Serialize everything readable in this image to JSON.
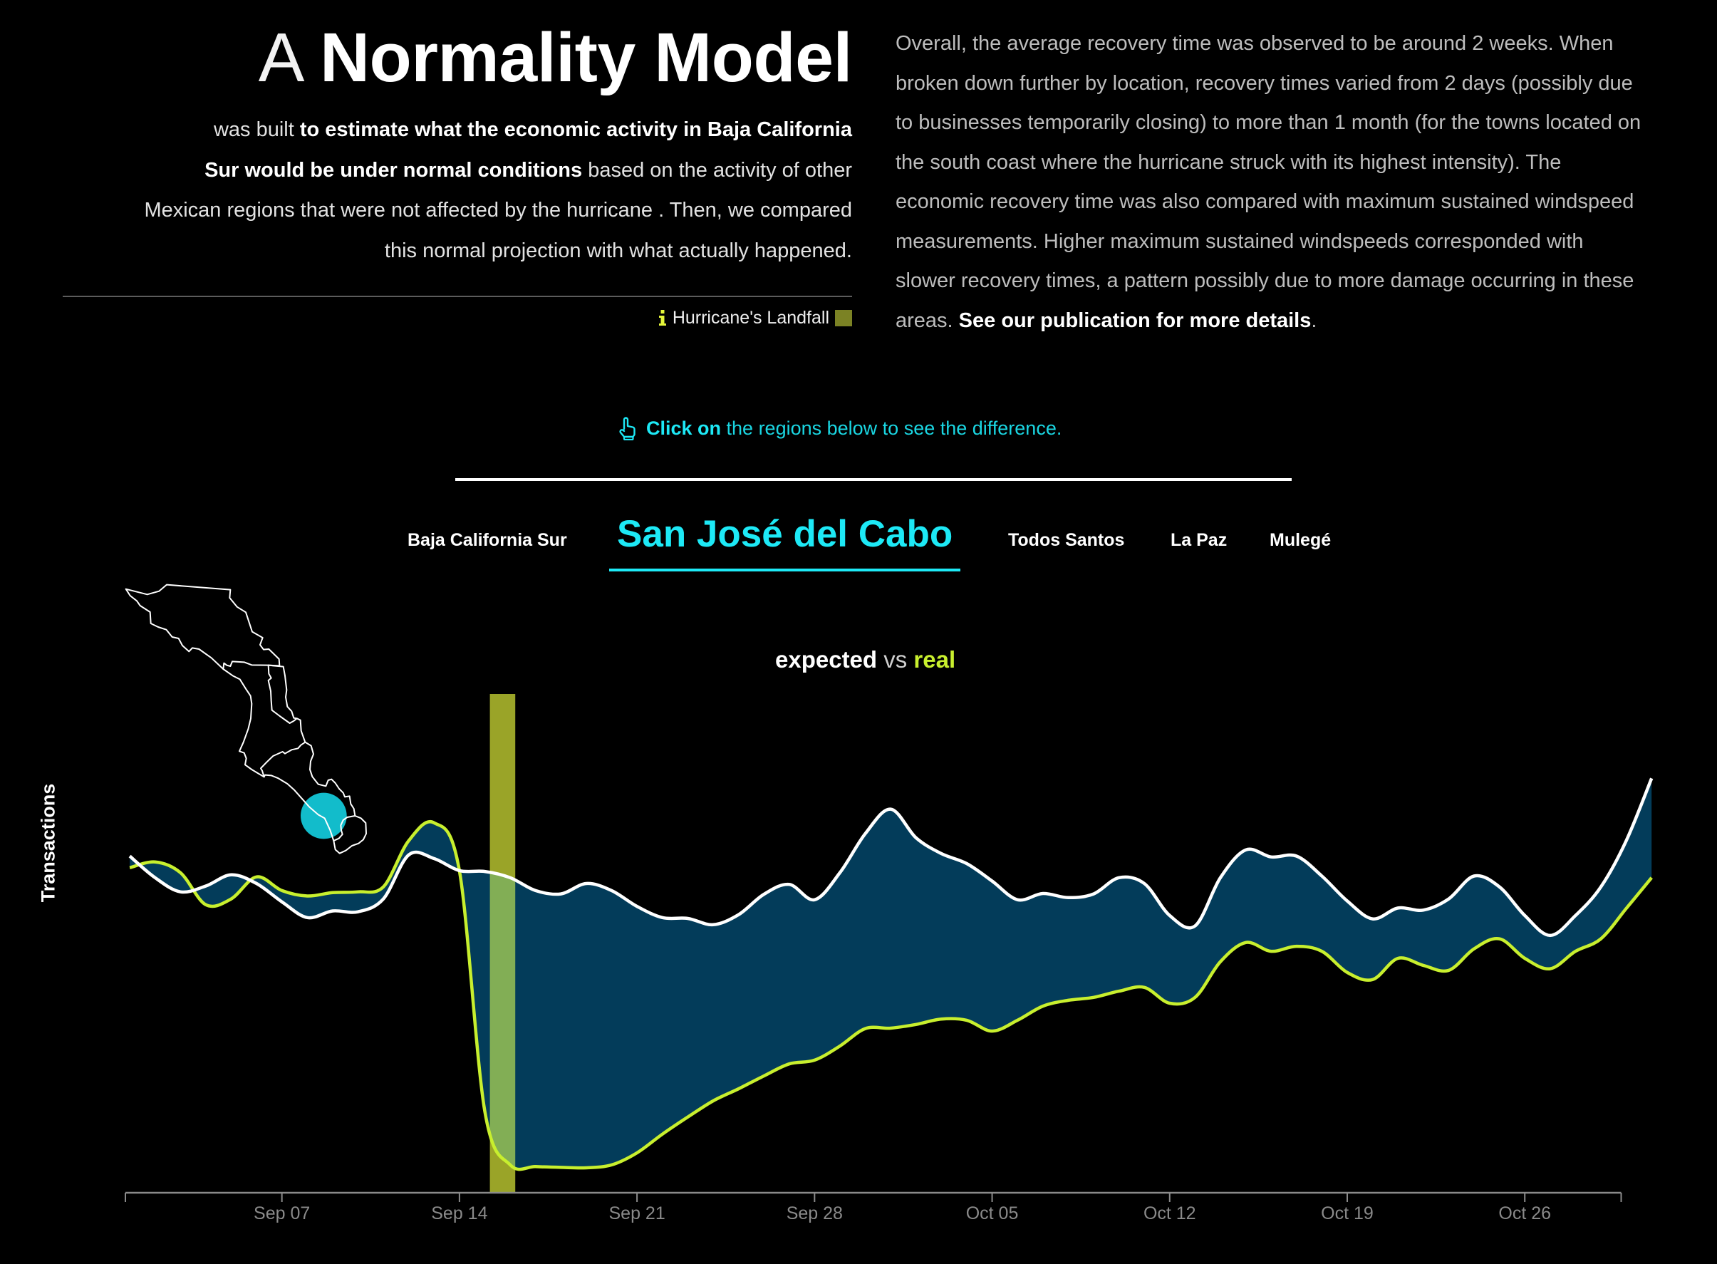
{
  "header": {
    "title_prefix": "A",
    "title_main": "Normality Model",
    "intro_lines": [
      [
        {
          "text": "was built ",
          "style": "light"
        },
        {
          "text": "to estimate what the economic activity in Baja California",
          "style": "bold"
        }
      ],
      [
        {
          "text": "Sur would be under normal conditions",
          "style": "bold"
        },
        {
          "text": " based on the activity of other",
          "style": "light"
        }
      ],
      [
        {
          "text": "Mexican regions that were not affected by the hurricane . Then, we compared",
          "style": "light"
        }
      ],
      [
        {
          "text": "this normal projection with what actually happened.",
          "style": "light"
        }
      ]
    ]
  },
  "legend": {
    "info_icon": "info-icon",
    "landfall_label": "Hurricane's Landfall",
    "landfall_color": "#7b8224"
  },
  "summary": {
    "lines": [
      "Overall, the average recovery time was observed to be around 2 weeks. When",
      "broken down further by location, recovery times varied from 2 days (possibly due",
      "to businesses temporarily closing) to more than 1 month (for the towns located on",
      "the south coast where the hurricane struck with its highest intensity). The",
      "economic recovery time was also compared with maximum sustained windspeed",
      "measurements. Higher maximum sustained windspeeds corresponded with",
      "slower recovery times, a pattern possibly due to more damage occurring in these"
    ],
    "last_line_prefix": "areas. ",
    "publication_link": "See our publication for more details",
    "last_line_suffix": "."
  },
  "instruction": {
    "icon": "pointing-hand-icon",
    "bold": "Click on",
    "rest": " the regions below to see the difference.",
    "color": "#1de9f6"
  },
  "tabs": {
    "items": [
      {
        "label": "Baja California Sur",
        "active": false
      },
      {
        "label": "San José del Cabo",
        "active": true
      },
      {
        "label": "Todos Santos",
        "active": false
      },
      {
        "label": "La Paz",
        "active": false
      },
      {
        "label": "Mulegé",
        "active": false
      }
    ]
  },
  "chart_header": {
    "expected": "expected",
    "vs": " vs ",
    "real": "real"
  },
  "map": {
    "selected_region": "San José del Cabo",
    "marker_color": "#12bccb",
    "outline_color": "#ffffff"
  },
  "chart_data": {
    "type": "area",
    "title": "expected vs real",
    "xlabel": "",
    "ylabel": "Transactions",
    "x": [
      "Sep 01",
      "Sep 02",
      "Sep 03",
      "Sep 04",
      "Sep 05",
      "Sep 06",
      "Sep 07",
      "Sep 08",
      "Sep 09",
      "Sep 10",
      "Sep 11",
      "Sep 12",
      "Sep 13",
      "Sep 14",
      "Sep 15",
      "Sep 16",
      "Sep 17",
      "Sep 18",
      "Sep 19",
      "Sep 20",
      "Sep 21",
      "Sep 22",
      "Sep 23",
      "Sep 24",
      "Sep 25",
      "Sep 26",
      "Sep 27",
      "Sep 28",
      "Sep 29",
      "Sep 30",
      "Oct 01",
      "Oct 02",
      "Oct 03",
      "Oct 04",
      "Oct 05",
      "Oct 06",
      "Oct 07",
      "Oct 08",
      "Oct 09",
      "Oct 10",
      "Oct 11",
      "Oct 12",
      "Oct 13",
      "Oct 14",
      "Oct 15",
      "Oct 16",
      "Oct 17",
      "Oct 18",
      "Oct 19",
      "Oct 20",
      "Oct 21",
      "Oct 22",
      "Oct 23",
      "Oct 24",
      "Oct 25",
      "Oct 26",
      "Oct 27",
      "Oct 28",
      "Oct 29",
      "Oct 30",
      "Oct 31"
    ],
    "series": [
      {
        "name": "expected",
        "color": "#ffffff",
        "values": [
          81.0,
          75.8,
          72.4,
          73.8,
          76.5,
          74.4,
          70.0,
          66.2,
          67.8,
          67.6,
          70.7,
          81.3,
          80.4,
          77.5,
          77.3,
          75.8,
          72.7,
          71.9,
          74.4,
          72.7,
          68.9,
          66.2,
          66.0,
          64.5,
          66.9,
          71.8,
          74.2,
          70.5,
          77.0,
          86.4,
          92.3,
          85.4,
          81.6,
          79.2,
          75.0,
          70.5,
          72.0,
          71.0,
          71.9,
          75.8,
          74.4,
          66.7,
          64.2,
          75.8,
          82.5,
          80.8,
          81.0,
          76.2,
          70.2,
          65.9,
          68.5,
          68.0,
          70.7,
          76.2,
          73.6,
          66.7,
          61.9,
          66.7,
          73.6,
          84.7,
          99.7
        ]
      },
      {
        "name": "real",
        "color": "#c8ef2e",
        "values": [
          78.2,
          79.6,
          77.0,
          69.3,
          70.7,
          76.0,
          72.7,
          71.4,
          72.2,
          72.4,
          73.6,
          84.7,
          89.0,
          77.4,
          19.6,
          6.7,
          6.3,
          6.1,
          6.0,
          6.7,
          9.6,
          14.1,
          18.2,
          22.1,
          25.0,
          28.1,
          31.0,
          31.9,
          35.3,
          39.5,
          39.6,
          40.5,
          41.8,
          41.5,
          38.9,
          41.5,
          44.9,
          46.3,
          47.0,
          48.5,
          49.4,
          45.6,
          47.0,
          55.6,
          60.2,
          58.1,
          59.3,
          58.1,
          53.0,
          51.3,
          56.4,
          54.7,
          53.5,
          58.7,
          61.1,
          56.4,
          53.9,
          58.1,
          61.1,
          68.4,
          75.8
        ]
      }
    ],
    "fill_between": {
      "series": [
        "expected",
        "real"
      ],
      "color": "#033c5a"
    },
    "x_ticks": [
      {
        "label": "Sep 07",
        "index": 6
      },
      {
        "label": "Sep 14",
        "index": 13
      },
      {
        "label": "Sep 21",
        "index": 20
      },
      {
        "label": "Sep 28",
        "index": 27
      },
      {
        "label": "Oct 05",
        "index": 34
      },
      {
        "label": "Oct 12",
        "index": 41
      },
      {
        "label": "Oct 19",
        "index": 48
      },
      {
        "label": "Oct 26",
        "index": 55
      }
    ],
    "xlim_index": [
      -0.17,
      58.8
    ],
    "ylim": [
      0,
      120
    ],
    "y_units": "relative transaction index (axis unlabeled)",
    "grid": false,
    "annotations": [
      {
        "label": "Hurricane's Landfall",
        "start_index": 14.2,
        "end_index": 15.2,
        "color": "#9aa428",
        "overlap_color": "#82ae55"
      }
    ],
    "legend_position": "top-center"
  }
}
